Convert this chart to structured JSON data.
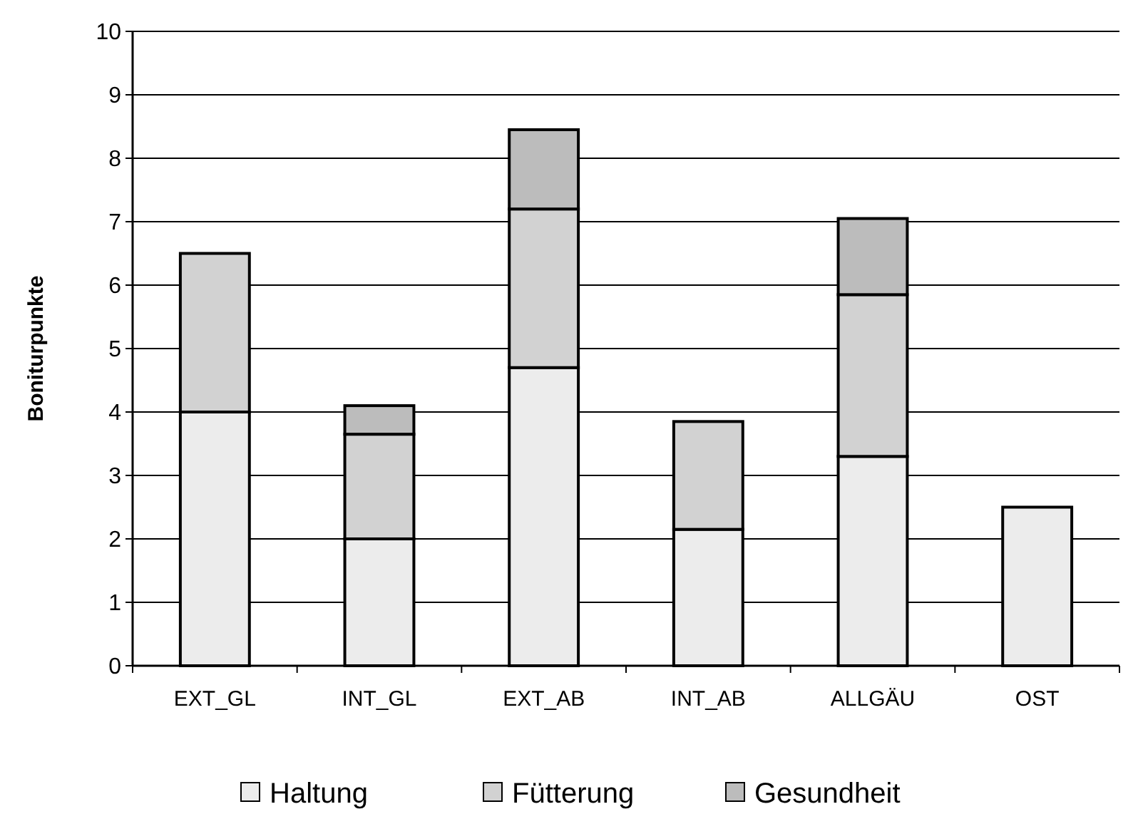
{
  "chart_data": {
    "type": "bar",
    "stacked": true,
    "ylabel": "Boniturpunkte",
    "categories": [
      "EXT_GL",
      "INT_GL",
      "EXT_AB",
      "INT_AB",
      "ALLGÄU",
      "OST"
    ],
    "series": [
      {
        "name": "Haltung",
        "color": "#ececec",
        "values": [
          4.0,
          2.0,
          4.7,
          2.15,
          3.3,
          2.5
        ]
      },
      {
        "name": "Fütterung",
        "color": "#d2d2d2",
        "values": [
          2.5,
          1.65,
          2.5,
          1.7,
          2.55,
          null
        ]
      },
      {
        "name": "Gesundheit",
        "color": "#bcbcbc",
        "values": [
          null,
          0.45,
          1.25,
          null,
          1.2,
          null
        ]
      }
    ],
    "ylim": [
      0,
      10
    ],
    "yticks": [
      0,
      1,
      2,
      3,
      4,
      5,
      6,
      7,
      8,
      9,
      10
    ],
    "grid": "y",
    "legend": "bottom"
  }
}
